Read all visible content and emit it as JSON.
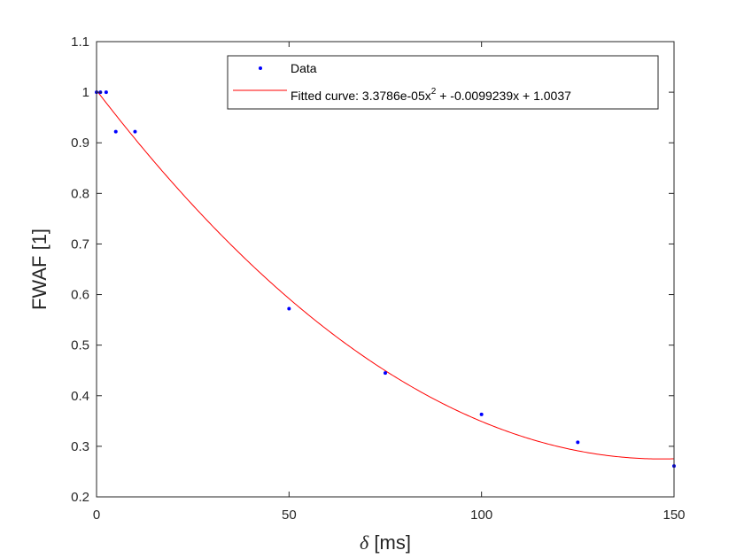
{
  "chart_data": {
    "type": "scatter",
    "xlabel_symbol": "δ",
    "xlabel_rest": " [ms]",
    "ylabel": "FWAF [1]",
    "xlim": [
      0,
      150
    ],
    "ylim": [
      0.2,
      1.1
    ],
    "x_ticks": [
      "0",
      "50",
      "100",
      "150"
    ],
    "y_ticks": [
      "0.2",
      "0.3",
      "0.4",
      "0.5",
      "0.6",
      "0.7",
      "0.8",
      "0.9",
      "1",
      "1.1"
    ],
    "grid": false,
    "legend_position": "top-right",
    "series": [
      {
        "name": "Data",
        "kind": "points",
        "color": "#0000ff",
        "x": [
          0,
          1,
          2.5,
          5,
          10,
          50,
          75,
          100,
          125,
          150
        ],
        "y": [
          1.0,
          1.0,
          1.0,
          0.922,
          0.922,
          0.572,
          0.445,
          0.363,
          0.308,
          0.261
        ]
      },
      {
        "name_prefix": "Fitted curve: 3.3786e-05x",
        "name_superscript": "2",
        "name_suffix": " + -0.0099239x + 1.0037",
        "kind": "fitted-curve",
        "color": "#ff0000",
        "coefficients": [
          3.3786e-05,
          -0.0099239,
          1.0037
        ]
      }
    ]
  }
}
